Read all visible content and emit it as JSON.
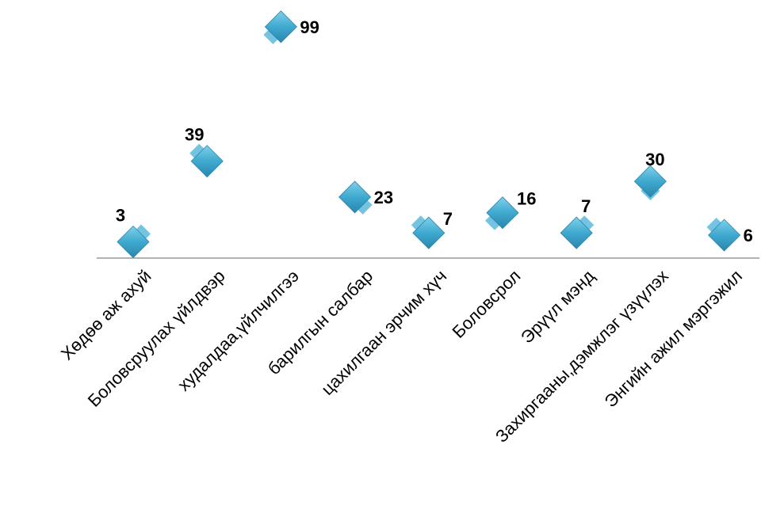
{
  "chart_data": {
    "type": "scatter",
    "categories": [
      "Хөдөө аж ахуй",
      "Боловсруулах үйлдвэр",
      "худалдаа,үйлчилгээ",
      "барилгын салбар",
      "цахилгаан эрчим хүч",
      "Боловсрол",
      "Эрүүл мэнд",
      "Захиргааны,дэмжлэг үзүүлэх",
      "Энгийн ажил мэргэжил"
    ],
    "values": [
      3,
      39,
      99,
      23,
      7,
      16,
      7,
      30,
      6
    ],
    "ylim": [
      0,
      100
    ],
    "grid": false,
    "marker": "diamond",
    "colors": {
      "marker": "#3fa9cf",
      "marker_dark": "#2a86ad",
      "axis": "#999999"
    }
  }
}
